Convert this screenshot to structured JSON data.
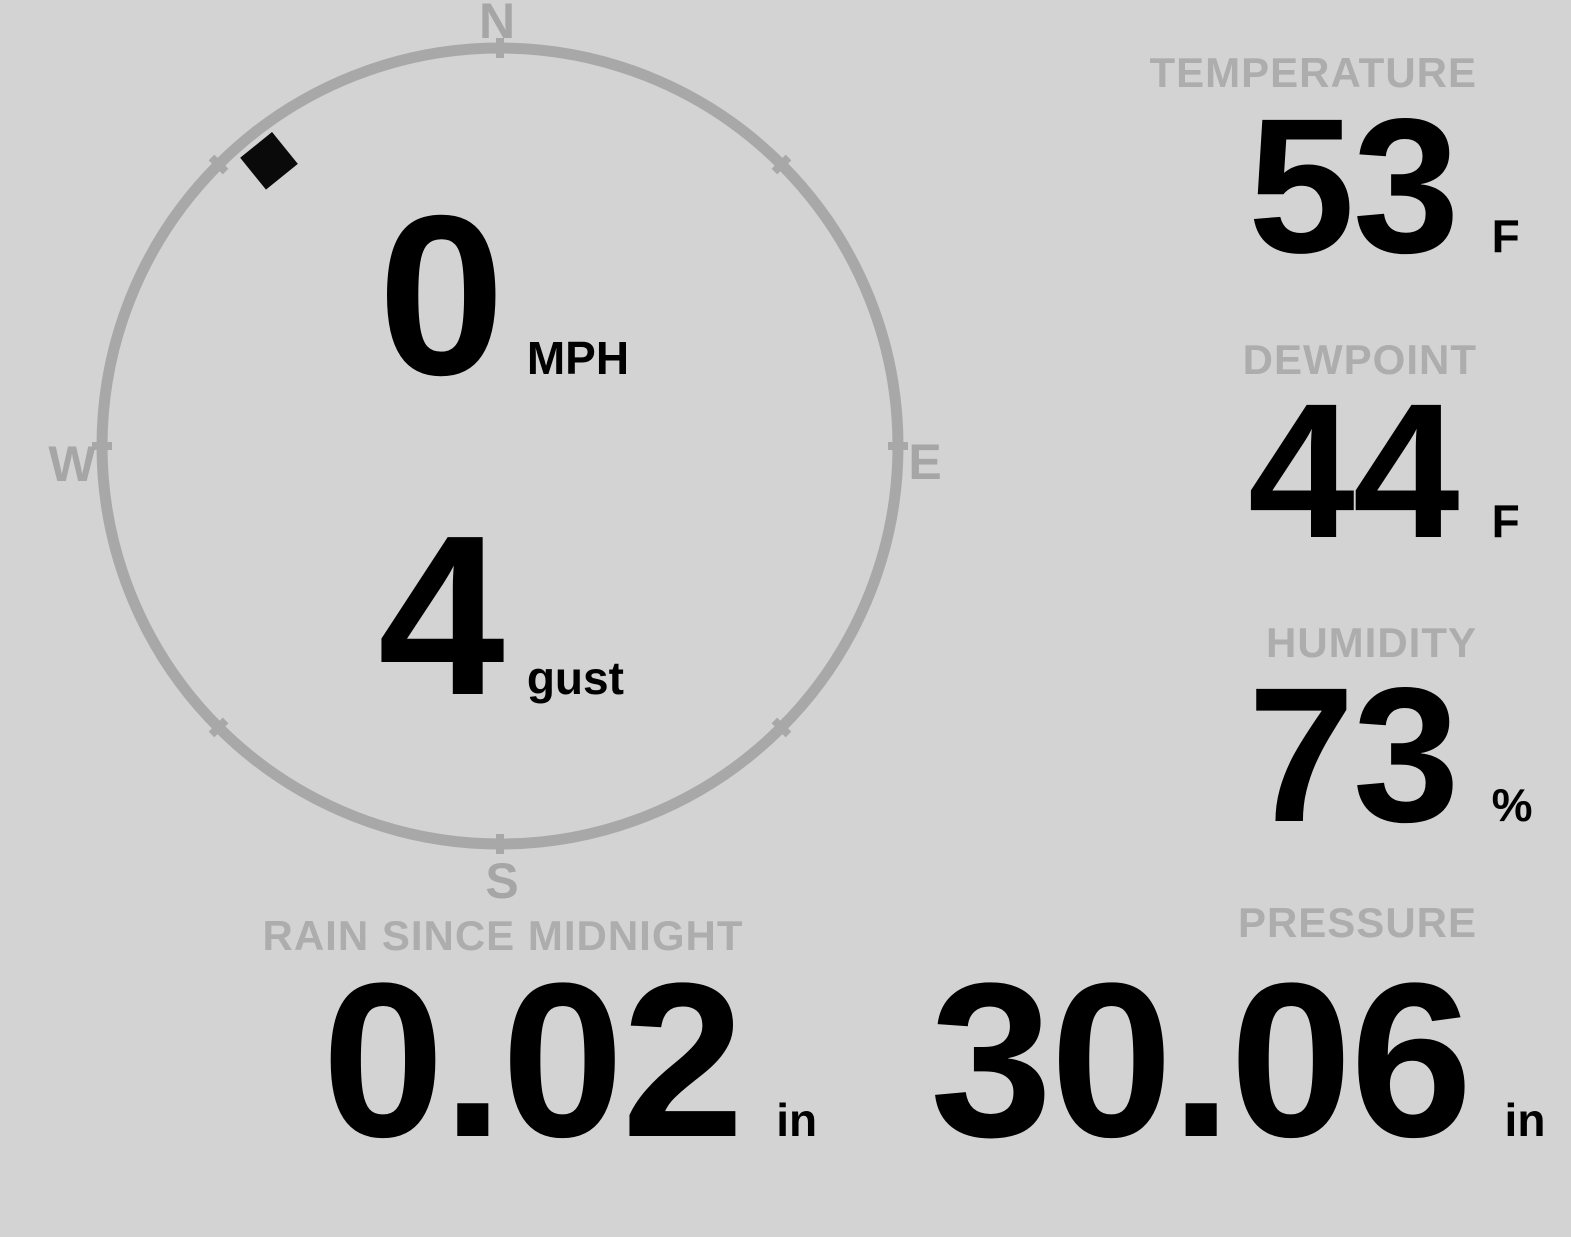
{
  "colors": {
    "background": "#d3d3d3",
    "ring": "#a8a8a8",
    "cardinal": "#a6a6a6",
    "caption": "#adadad",
    "value": "#000000"
  },
  "compass": {
    "north_label": "N",
    "east_label": "E",
    "south_label": "S",
    "west_label": "W",
    "wind_speed_value": "0",
    "wind_speed_unit": "MPH",
    "wind_gust_value": "4",
    "wind_gust_unit": "gust",
    "wind_direction_deg": 321
  },
  "metrics": {
    "temperature": {
      "label": "TEMPERATURE",
      "value": "53",
      "unit": "F"
    },
    "dewpoint": {
      "label": "DEWPOINT",
      "value": "44",
      "unit": "F"
    },
    "humidity": {
      "label": "HUMIDITY",
      "value": "73",
      "unit": "%"
    },
    "rain_since_midnight": {
      "label": "RAIN SINCE MIDNIGHT",
      "value": "0.02",
      "unit": "in"
    },
    "pressure": {
      "label": "PRESSURE",
      "value": "30.06",
      "unit": "in"
    }
  }
}
